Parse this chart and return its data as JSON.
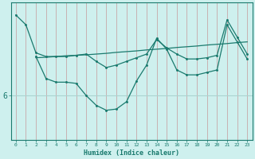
{
  "xlabel": "Humidex (Indice chaleur)",
  "bg_color": "#cef0ee",
  "line_color": "#1a7a6e",
  "grid_color_v": "#c8a8a8",
  "grid_color_h": "#aad4d0",
  "ytick_labels": [
    "6"
  ],
  "ytick_values": [
    6
  ],
  "xlim": [
    -0.5,
    23.5
  ],
  "ylim": [
    4.2,
    9.8
  ],
  "xticks": [
    0,
    1,
    2,
    3,
    4,
    5,
    6,
    7,
    8,
    9,
    10,
    11,
    12,
    13,
    14,
    15,
    16,
    17,
    18,
    19,
    20,
    21,
    22,
    23
  ],
  "line1_x": [
    0,
    1,
    2,
    3,
    4,
    5,
    6,
    7,
    8,
    9,
    10,
    11,
    12,
    13,
    14,
    15,
    16,
    17,
    18,
    19,
    20,
    21,
    22,
    23
  ],
  "line1_y": [
    9.3,
    8.9,
    7.75,
    7.6,
    7.6,
    7.6,
    7.65,
    7.7,
    7.4,
    7.15,
    7.25,
    7.4,
    7.55,
    7.7,
    8.3,
    7.95,
    7.7,
    7.5,
    7.5,
    7.55,
    7.65,
    9.1,
    8.4,
    7.7
  ],
  "line2_x": [
    2,
    3,
    4,
    5,
    6,
    7,
    8,
    9,
    10,
    11,
    12,
    13,
    14,
    15,
    16,
    17,
    18,
    19,
    20,
    21,
    22,
    23
  ],
  "line2_y": [
    7.6,
    6.7,
    6.55,
    6.55,
    6.5,
    6.0,
    5.6,
    5.4,
    5.45,
    5.75,
    6.6,
    7.25,
    8.35,
    7.9,
    7.05,
    6.85,
    6.85,
    6.95,
    7.05,
    8.9,
    8.2,
    7.5
  ],
  "line3_x": [
    2,
    3,
    4,
    5,
    6,
    7,
    8,
    9,
    10,
    11,
    12,
    13,
    14,
    15,
    16,
    17,
    18,
    19,
    20,
    21,
    22,
    23
  ],
  "line3_y": [
    7.55,
    7.57,
    7.6,
    7.63,
    7.65,
    7.67,
    7.7,
    7.73,
    7.77,
    7.8,
    7.83,
    7.87,
    7.9,
    7.93,
    7.97,
    8.0,
    8.03,
    8.07,
    8.1,
    8.13,
    8.17,
    8.2
  ]
}
